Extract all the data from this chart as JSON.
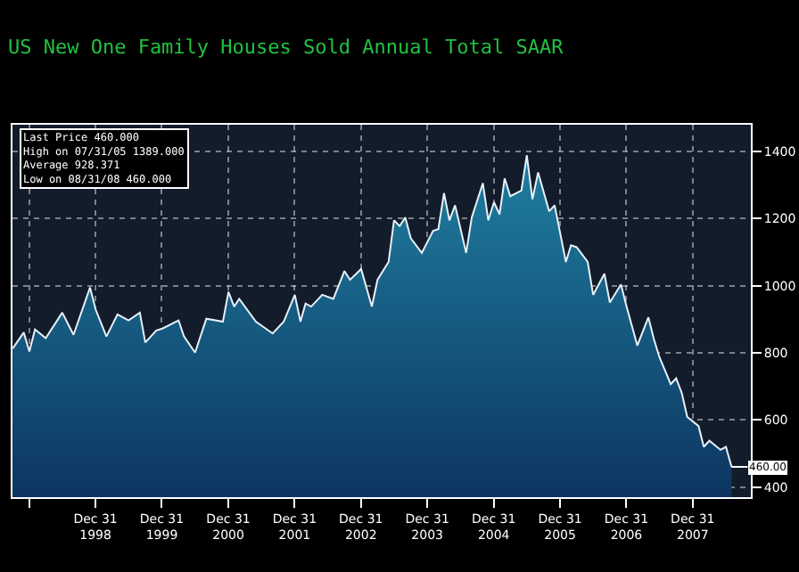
{
  "chart_data": {
    "type": "area",
    "title": "US New One Family Houses Sold Annual Total SAAR",
    "x": [
      "1997-10",
      "1997-12",
      "1998-01",
      "1998-02",
      "1998-04",
      "1998-07",
      "1998-09",
      "1998-12",
      "1999-01",
      "1999-03",
      "1999-05",
      "1999-07",
      "1999-09",
      "1999-10",
      "1999-12",
      "2000-01",
      "2000-04",
      "2000-05",
      "2000-07",
      "2000-09",
      "2000-12",
      "2001-01",
      "2001-02",
      "2001-03",
      "2001-06",
      "2001-09",
      "2001-11",
      "2002-01",
      "2002-02",
      "2002-03",
      "2002-04",
      "2002-06",
      "2002-08",
      "2002-10",
      "2002-11",
      "2003-01",
      "2003-03",
      "2003-04",
      "2003-06",
      "2003-07",
      "2003-08",
      "2003-09",
      "2003-10",
      "2003-12",
      "2004-02",
      "2004-03",
      "2004-04",
      "2004-05",
      "2004-06",
      "2004-08",
      "2004-09",
      "2004-11",
      "2004-12",
      "2005-01",
      "2005-02",
      "2005-03",
      "2005-04",
      "2005-06",
      "2005-07",
      "2005-08",
      "2005-09",
      "2005-11",
      "2005-12",
      "2006-02",
      "2006-03",
      "2006-04",
      "2006-06",
      "2006-07",
      "2006-09",
      "2006-10",
      "2006-12",
      "2007-01",
      "2007-03",
      "2007-05",
      "2007-06",
      "2007-07",
      "2007-09",
      "2007-10",
      "2007-11",
      "2007-12",
      "2008-02",
      "2008-03",
      "2008-04",
      "2008-06",
      "2008-07",
      "2008-08"
    ],
    "series": [
      {
        "color": "#1f7fa0",
        "values": [
          813,
          861,
          804,
          870,
          844,
          920,
          854,
          995,
          929,
          849,
          915,
          897,
          920,
          831,
          867,
          872,
          897,
          849,
          801,
          902,
          893,
          982,
          938,
          961,
          893,
          858,
          893,
          973,
          893,
          947,
          938,
          973,
          961,
          1044,
          1018,
          1050,
          938,
          1018,
          1071,
          1195,
          1178,
          1204,
          1142,
          1098,
          1164,
          1169,
          1276,
          1195,
          1240,
          1098,
          1204,
          1306,
          1195,
          1249,
          1213,
          1320,
          1267,
          1284,
          1389,
          1258,
          1338,
          1222,
          1240,
          1071,
          1121,
          1115,
          1071,
          973,
          1036,
          950,
          1004,
          938,
          822,
          906,
          840,
          787,
          707,
          724,
          680,
          609,
          582,
          520,
          538,
          511,
          520,
          460
        ]
      }
    ],
    "xlim": [
      "1997-09-30",
      "2008-11-15"
    ],
    "xticks": [
      {
        "value": "1997-12-31",
        "label": null
      },
      {
        "value": "1998-12-31",
        "label": "Dec 31\n1998"
      },
      {
        "value": "1999-12-31",
        "label": "Dec 31\n1999"
      },
      {
        "value": "2000-12-31",
        "label": "Dec 31\n2000"
      },
      {
        "value": "2001-12-31",
        "label": "Dec 31\n2001"
      },
      {
        "value": "2002-12-31",
        "label": "Dec 31\n2002"
      },
      {
        "value": "2003-12-31",
        "label": "Dec 31\n2003"
      },
      {
        "value": "2004-12-31",
        "label": "Dec 31\n2004"
      },
      {
        "value": "2005-12-31",
        "label": "Dec 31\n2005"
      },
      {
        "value": "2006-12-31",
        "label": "Dec 31\n2006"
      },
      {
        "value": "2007-12-31",
        "label": "Dec 31\n2007"
      }
    ],
    "ylim": [
      370,
      1480
    ],
    "yticks": [
      400,
      600,
      800,
      1000,
      1200,
      1400
    ],
    "grid": true,
    "annotations": [
      "Last Price 460.000\nHigh on 07/31/05 1389.000\nAverage 928.371\nLow on 08/31/08 460.000",
      {
        "text": "460.00",
        "x": "2008-08",
        "y": 460
      }
    ]
  }
}
